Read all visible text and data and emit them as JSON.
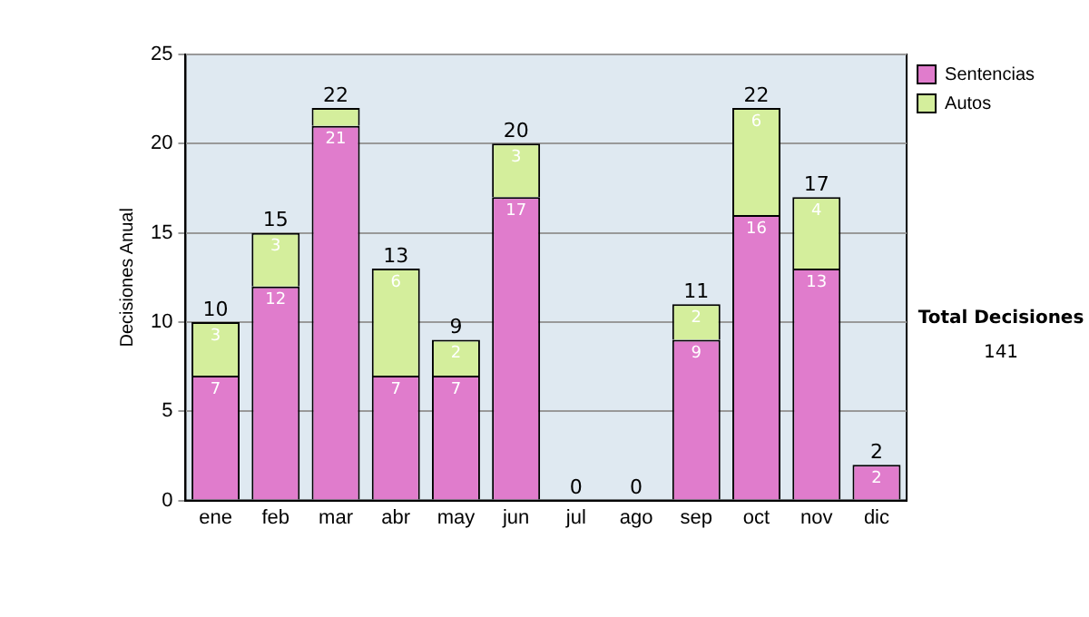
{
  "chart_data": {
    "type": "bar",
    "stacked": true,
    "ylabel": "Decisiones Anual",
    "categories": [
      "ene",
      "feb",
      "mar",
      "abr",
      "may",
      "jun",
      "jul",
      "ago",
      "sep",
      "oct",
      "nov",
      "dic"
    ],
    "series": [
      {
        "name": "Sentencias",
        "color": "#e07ccc",
        "values": [
          7,
          12,
          21,
          7,
          7,
          17,
          0,
          0,
          9,
          16,
          13,
          2
        ],
        "value_labels": [
          "7",
          "12",
          "21",
          "7",
          "7",
          "17",
          null,
          null,
          "9",
          "16",
          "13",
          "2"
        ]
      },
      {
        "name": "Autos",
        "color": "#d4ee9c",
        "values": [
          3,
          3,
          1,
          6,
          2,
          3,
          0,
          0,
          2,
          6,
          4,
          0
        ],
        "value_labels": [
          "3",
          "3",
          null,
          "6",
          "2",
          "3",
          null,
          null,
          "2",
          "6",
          "4",
          null
        ]
      }
    ],
    "totals": [
      "10",
      "15",
      "22",
      "13",
      "9",
      "20",
      "0",
      "0",
      "11",
      "22",
      "17",
      "2"
    ],
    "ylim": [
      0,
      25
    ],
    "yticks": [
      0,
      5,
      10,
      15,
      20,
      25
    ],
    "grid": "y",
    "legend": "right",
    "annotations": [
      "Total Decisiones",
      "141"
    ]
  }
}
